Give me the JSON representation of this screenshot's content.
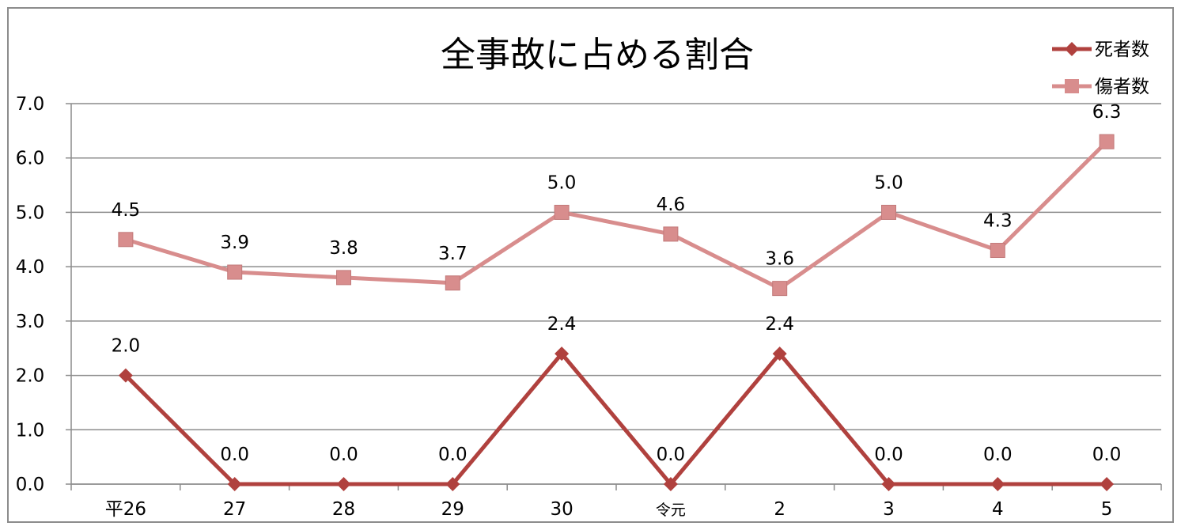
{
  "chart_data": {
    "type": "line",
    "title": "全事故に占める割合",
    "categories": [
      "平26",
      "27",
      "28",
      "29",
      "30",
      "令元",
      "2",
      "3",
      "4",
      "5"
    ],
    "series": [
      {
        "name": "死者数",
        "values": [
          2.0,
          0.0,
          0.0,
          0.0,
          2.4,
          0.0,
          2.4,
          0.0,
          0.0,
          0.0
        ],
        "labels": [
          "2.0",
          "0.0",
          "0.0",
          "0.0",
          "2.4",
          "0.0",
          "2.4",
          "0.0",
          "0.0",
          "0.0"
        ],
        "color": "#b0413e",
        "marker": "diamond"
      },
      {
        "name": "傷者数",
        "values": [
          4.5,
          3.9,
          3.8,
          3.7,
          5.0,
          4.6,
          3.6,
          5.0,
          4.3,
          6.3
        ],
        "labels": [
          "4.5",
          "3.9",
          "3.8",
          "3.7",
          "5.0",
          "4.6",
          "3.6",
          "5.0",
          "4.3",
          "6.3"
        ],
        "color": "#d88d8d",
        "marker": "square"
      }
    ],
    "y_ticks": [
      "0.0",
      "1.0",
      "2.0",
      "3.0",
      "4.0",
      "5.0",
      "6.0",
      "7.0"
    ],
    "ylim": [
      0,
      7
    ],
    "grid": true,
    "legend_position": "top-right",
    "xlabel": "",
    "ylabel": ""
  }
}
